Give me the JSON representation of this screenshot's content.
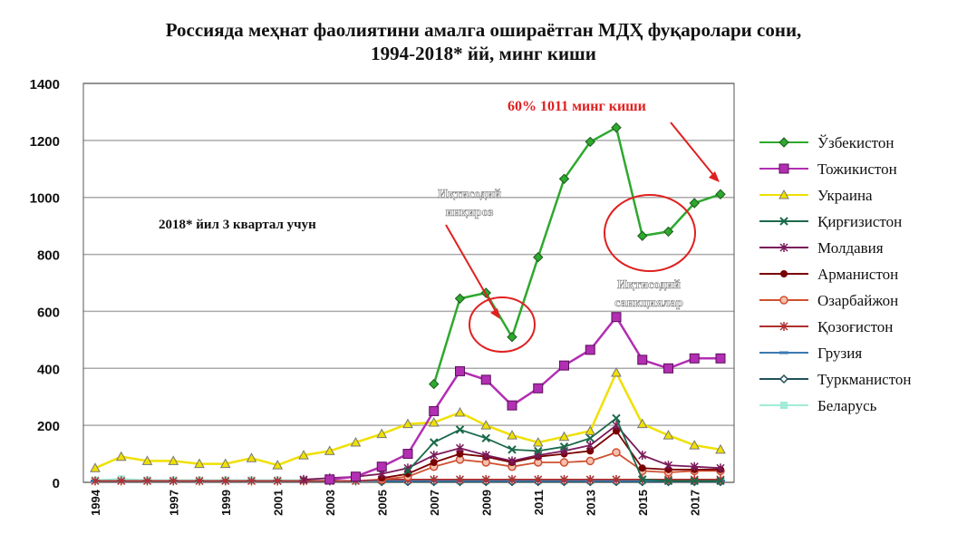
{
  "title_line1": "Россияда меҳнат фаолиятини амалга ошираётган МДҲ фуқаролари сони,",
  "title_line2": "1994-2018* йй, минг киши",
  "annotations": {
    "note_2018": "2018* йил 3 квартал учун",
    "highlight_2018": "60% 1011 минг киши",
    "crisis": [
      "Иқтисодий",
      "инқироз"
    ],
    "sanctions": [
      "Иқтисодий",
      "санкциялар"
    ]
  },
  "chart_data": {
    "type": "line",
    "title": "Россияда меҳнат фаолиятини амалга ошираётган МДҲ фуқаролари сони, 1994-2018* йй, минг киши",
    "x": [
      1994,
      1995,
      1996,
      1997,
      1998,
      1999,
      2000,
      2001,
      2002,
      2003,
      2004,
      2005,
      2006,
      2007,
      2008,
      2009,
      2010,
      2011,
      2012,
      2013,
      2014,
      2015,
      2016,
      2017,
      2018
    ],
    "x_tick_labels": [
      "1994",
      "1997",
      "1999",
      "2001",
      "2003",
      "2005",
      "2007",
      "2009",
      "2011",
      "2013",
      "2015",
      "2017"
    ],
    "x_tick_values": [
      1994,
      1997,
      1999,
      2001,
      2003,
      2005,
      2007,
      2009,
      2011,
      2013,
      2015,
      2017
    ],
    "ylim": [
      0,
      1400
    ],
    "y_ticks": [
      0,
      200,
      400,
      600,
      800,
      1000,
      1200,
      1400
    ],
    "grid": true,
    "legend_position": "right",
    "series": [
      {
        "name": "Ўзбекистон",
        "color": "#2ea82e",
        "marker": "diamond",
        "values": [
          null,
          null,
          null,
          null,
          null,
          null,
          null,
          null,
          null,
          null,
          null,
          null,
          null,
          345,
          645,
          665,
          510,
          790,
          1065,
          1195,
          1245,
          865,
          880,
          980,
          1011
        ]
      },
      {
        "name": "Тожикистон",
        "color": "#b22eb2",
        "marker": "square",
        "values": [
          null,
          null,
          null,
          null,
          null,
          null,
          null,
          null,
          null,
          10,
          20,
          55,
          100,
          250,
          390,
          360,
          270,
          330,
          410,
          465,
          580,
          430,
          400,
          435,
          435
        ]
      },
      {
        "name": "Украина",
        "color": "#f0e000",
        "marker": "triangle",
        "values": [
          50,
          90,
          75,
          75,
          65,
          65,
          85,
          60,
          95,
          110,
          140,
          170,
          205,
          210,
          245,
          200,
          165,
          140,
          160,
          180,
          385,
          205,
          165,
          130,
          115
        ]
      },
      {
        "name": "Қирғизистон",
        "color": "#1a6a4a",
        "marker": "x",
        "values": [
          null,
          null,
          null,
          null,
          null,
          null,
          null,
          null,
          null,
          null,
          null,
          null,
          40,
          140,
          185,
          155,
          115,
          110,
          125,
          155,
          225,
          10,
          5,
          5,
          5
        ]
      },
      {
        "name": "Молдавия",
        "color": "#7a1a5a",
        "marker": "star",
        "values": [
          null,
          null,
          null,
          null,
          null,
          null,
          null,
          null,
          10,
          15,
          20,
          30,
          50,
          95,
          120,
          95,
          75,
          95,
          110,
          130,
          200,
          95,
          60,
          55,
          50
        ]
      },
      {
        "name": "Арманистон",
        "color": "#7a0000",
        "marker": "dot",
        "values": [
          null,
          null,
          null,
          null,
          null,
          null,
          null,
          null,
          null,
          null,
          null,
          15,
          30,
          70,
          100,
          90,
          70,
          90,
          100,
          110,
          180,
          50,
          45,
          45,
          45
        ]
      },
      {
        "name": "Озарбайжон",
        "color": "#d05030",
        "marker": "circle",
        "values": [
          null,
          null,
          null,
          null,
          null,
          null,
          null,
          null,
          null,
          null,
          null,
          10,
          20,
          55,
          80,
          70,
          55,
          70,
          70,
          75,
          105,
          40,
          35,
          40,
          40
        ]
      },
      {
        "name": "Қозоғистон",
        "color": "#b03030",
        "marker": "star",
        "values": [
          5,
          5,
          5,
          5,
          5,
          5,
          5,
          5,
          5,
          5,
          5,
          10,
          10,
          10,
          10,
          10,
          10,
          10,
          10,
          10,
          10,
          10,
          10,
          10,
          10
        ]
      },
      {
        "name": "Грузия",
        "color": "#3a7ab0",
        "marker": "dash",
        "values": [
          5,
          5,
          5,
          5,
          5,
          5,
          5,
          5,
          5,
          5,
          5,
          5,
          5,
          5,
          5,
          5,
          5,
          5,
          5,
          5,
          5,
          5,
          5,
          5,
          5
        ]
      },
      {
        "name": "Туркманистон",
        "color": "#20505a",
        "marker": "diamond-open",
        "values": [
          null,
          null,
          null,
          null,
          null,
          null,
          null,
          null,
          null,
          null,
          null,
          2,
          2,
          2,
          2,
          2,
          2,
          2,
          2,
          2,
          2,
          2,
          2,
          2,
          2
        ]
      },
      {
        "name": "Беларусь",
        "color": "#a0ecd8",
        "marker": "square-light",
        "values": [
          8,
          12,
          8,
          8,
          8,
          8,
          8,
          8,
          8,
          5,
          5,
          5,
          5,
          5,
          5,
          5,
          5,
          5,
          5,
          5,
          5,
          5,
          5,
          5,
          5
        ]
      }
    ]
  }
}
